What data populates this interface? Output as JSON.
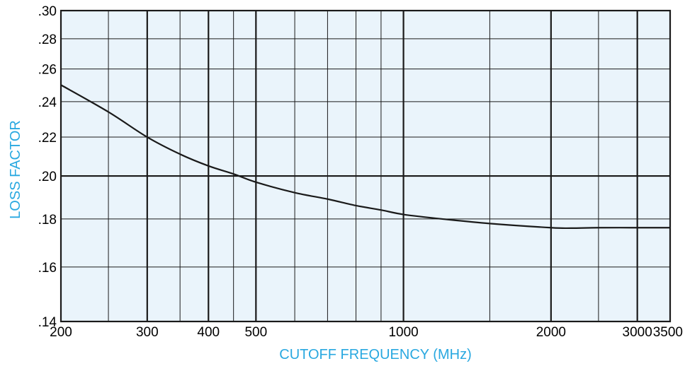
{
  "chart_data": {
    "type": "line",
    "title": "",
    "xlabel": "CUTOFF FREQUENCY (MHz)",
    "ylabel": "LOSS FACTOR",
    "x_scale": "log",
    "y_scale": "log",
    "xlim": [
      200,
      3500
    ],
    "ylim": [
      0.14,
      0.3
    ],
    "x_tick_labels": [
      {
        "value": 200,
        "label": "200"
      },
      {
        "value": 300,
        "label": "300"
      },
      {
        "value": 400,
        "label": "400"
      },
      {
        "value": 500,
        "label": "500"
      },
      {
        "value": 1000,
        "label": "1000"
      },
      {
        "value": 2000,
        "label": "2000"
      },
      {
        "value": 3000,
        "label": "3000"
      },
      {
        "value": 3500,
        "label": "3500"
      }
    ],
    "y_tick_labels": [
      {
        "value": 0.14,
        "label": ".14"
      },
      {
        "value": 0.16,
        "label": ".16"
      },
      {
        "value": 0.18,
        "label": ".18"
      },
      {
        "value": 0.2,
        "label": ".20"
      },
      {
        "value": 0.22,
        "label": ".22"
      },
      {
        "value": 0.24,
        "label": ".24"
      },
      {
        "value": 0.26,
        "label": ".26"
      },
      {
        "value": 0.28,
        "label": ".28"
      },
      {
        "value": 0.3,
        "label": ".30"
      }
    ],
    "x_grid_minor": [
      250,
      350,
      450,
      600,
      700,
      800,
      900,
      1500,
      2500
    ],
    "x_grid_major": [
      300,
      400,
      500,
      1000,
      2000,
      3000
    ],
    "y_grid_minor": [
      0.16,
      0.18,
      0.22,
      0.24,
      0.26,
      0.28
    ],
    "y_grid_major": [
      0.2
    ],
    "grid": true,
    "series": [
      {
        "x": [
          200,
          250,
          300,
          350,
          400,
          450,
          500,
          600,
          700,
          800,
          900,
          1000,
          1200,
          1500,
          2000,
          2200,
          2500,
          3000,
          3500
        ],
        "y": [
          0.25,
          0.234,
          0.22,
          0.211,
          0.205,
          0.201,
          0.197,
          0.192,
          0.189,
          0.186,
          0.184,
          0.182,
          0.18,
          0.178,
          0.1762,
          0.176,
          0.1762,
          0.1762,
          0.1762
        ]
      }
    ],
    "colors": {
      "plot_background": "#eaf4fb",
      "axis_title": "#29a8e0",
      "line": "#1a1a1a",
      "grid": "#1a1a1a"
    }
  }
}
